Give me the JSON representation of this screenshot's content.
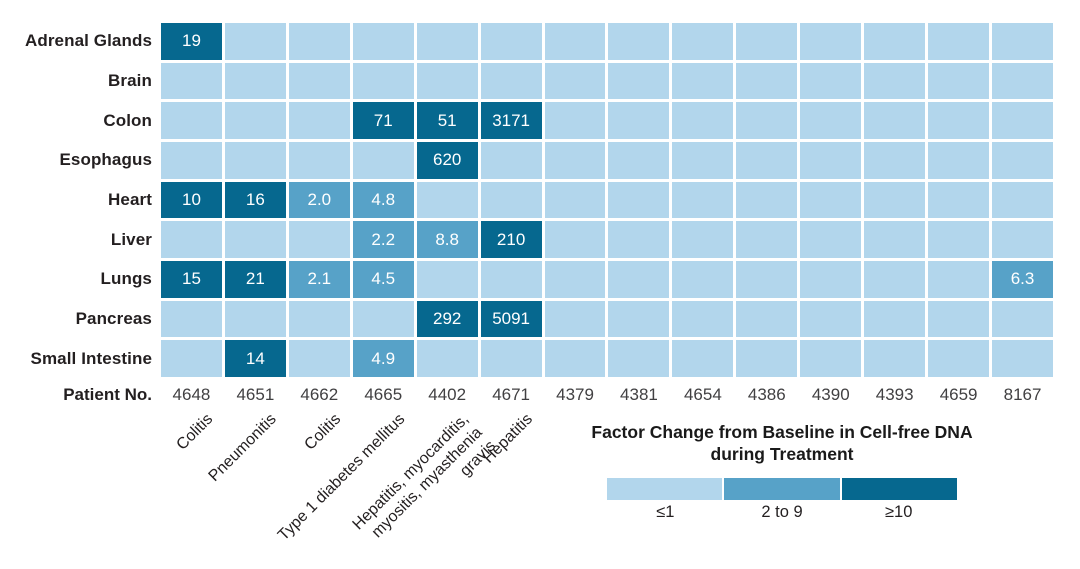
{
  "chart_data": {
    "type": "heatmap",
    "rows": [
      "Adrenal Glands",
      "Brain",
      "Colon",
      "Esophagus",
      "Heart",
      "Liver",
      "Lungs",
      "Pancreas",
      "Small Intestine"
    ],
    "x_axis_label": "Patient No.",
    "columns": [
      "4648",
      "4651",
      "4662",
      "4665",
      "4402",
      "4671",
      "4379",
      "4381",
      "4654",
      "4386",
      "4390",
      "4393",
      "4659",
      "8167"
    ],
    "column_diagnoses": [
      [
        "Colitis"
      ],
      [
        "Pneumonitis"
      ],
      [
        "Colitis"
      ],
      [
        "Type 1 diabetes mellitus"
      ],
      [
        "Hepatitis, myocarditis,",
        "myositis, myasthenia",
        "gravis"
      ],
      [
        "Hepatitis"
      ],
      [],
      [],
      [],
      [],
      [],
      [],
      [],
      []
    ],
    "values": [
      [
        "19",
        "",
        "",
        "",
        "",
        "",
        "",
        "",
        "",
        "",
        "",
        "",
        "",
        ""
      ],
      [
        "",
        "",
        "",
        "",
        "",
        "",
        "",
        "",
        "",
        "",
        "",
        "",
        "",
        ""
      ],
      [
        "",
        "",
        "",
        "71",
        "51",
        "3171",
        "",
        "",
        "",
        "",
        "",
        "",
        "",
        ""
      ],
      [
        "",
        "",
        "",
        "",
        "620",
        "",
        "",
        "",
        "",
        "",
        "",
        "",
        "",
        ""
      ],
      [
        "10",
        "16",
        "2.0",
        "4.8",
        "",
        "",
        "",
        "",
        "",
        "",
        "",
        "",
        "",
        ""
      ],
      [
        "",
        "",
        "",
        "2.2",
        "8.8",
        "210",
        "",
        "",
        "",
        "",
        "",
        "",
        "",
        ""
      ],
      [
        "15",
        "21",
        "2.1",
        "4.5",
        "",
        "",
        "",
        "",
        "",
        "",
        "",
        "",
        "",
        "6.3"
      ],
      [
        "",
        "",
        "",
        "",
        "292",
        "5091",
        "",
        "",
        "",
        "",
        "",
        "",
        "",
        ""
      ],
      [
        "",
        "14",
        "",
        "4.9",
        "",
        "",
        "",
        "",
        "",
        "",
        "",
        "",
        "",
        ""
      ]
    ],
    "colors": {
      "low": "#B2D6EC",
      "mid": "#57A2C8",
      "high": "#06688F"
    },
    "category_threshold_high": 10,
    "legend": {
      "title_lines": [
        "Factor Change from Baseline in Cell-free DNA",
        "during Treatment"
      ],
      "items": [
        {
          "label": "≤1",
          "color_key": "low"
        },
        {
          "label": "2 to 9",
          "color_key": "mid"
        },
        {
          "label": "≥10",
          "color_key": "high"
        }
      ]
    }
  }
}
